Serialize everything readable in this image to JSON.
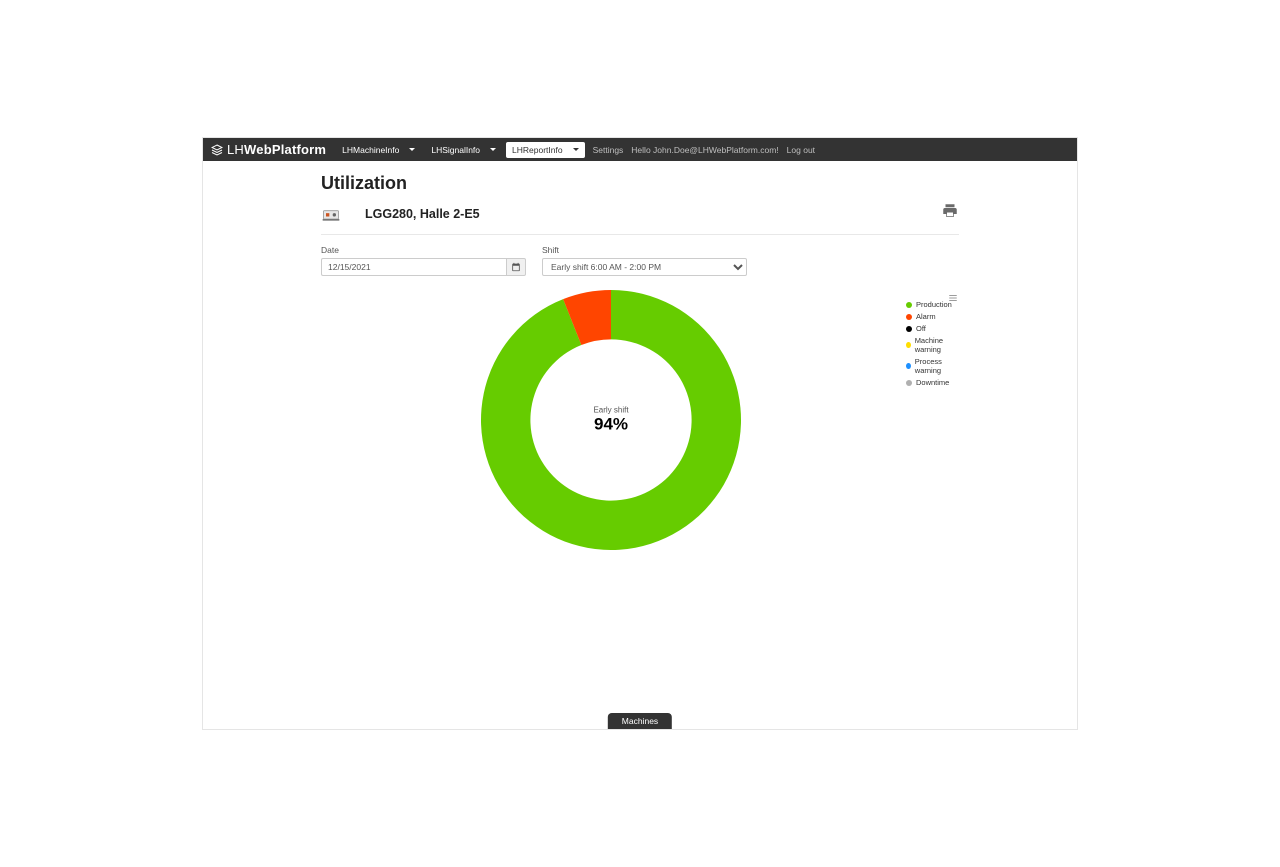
{
  "brand": {
    "light": "LH",
    "bold": "WebPlatform"
  },
  "nav": {
    "items": [
      {
        "label": "LHMachineInfo",
        "active": false
      },
      {
        "label": "LHSignalInfo",
        "active": false
      },
      {
        "label": "LHReportInfo",
        "active": true
      }
    ],
    "settings": "Settings",
    "greeting": "Hello John.Doe@LHWebPlatform.com!",
    "logout": "Log out"
  },
  "page": {
    "title": "Utilization",
    "machine": "LGG280, Halle 2-E5"
  },
  "filters": {
    "date_label": "Date",
    "date_value": "12/15/2021",
    "shift_label": "Shift",
    "shift_value": "Early shift 6:00 AM - 2:00 PM"
  },
  "chart": {
    "type": "donut",
    "center_label": "Early shift",
    "center_value": "94%",
    "inner_radius_pct": 62,
    "background": "#ffffff",
    "slices": [
      {
        "label": "Production",
        "value": 94,
        "color": "#66cc00"
      },
      {
        "label": "Alarm",
        "value": 6,
        "color": "#ff4500"
      }
    ],
    "legend": [
      {
        "label": "Production",
        "color": "#66cc00"
      },
      {
        "label": "Alarm",
        "color": "#ff4500"
      },
      {
        "label": "Off",
        "color": "#000000"
      },
      {
        "label": "Machine warning",
        "color": "#ffde00"
      },
      {
        "label": "Process warning",
        "color": "#1e90ff"
      },
      {
        "label": "Downtime",
        "color": "#b0b0b0"
      }
    ]
  },
  "bottom_tab": "Machines"
}
